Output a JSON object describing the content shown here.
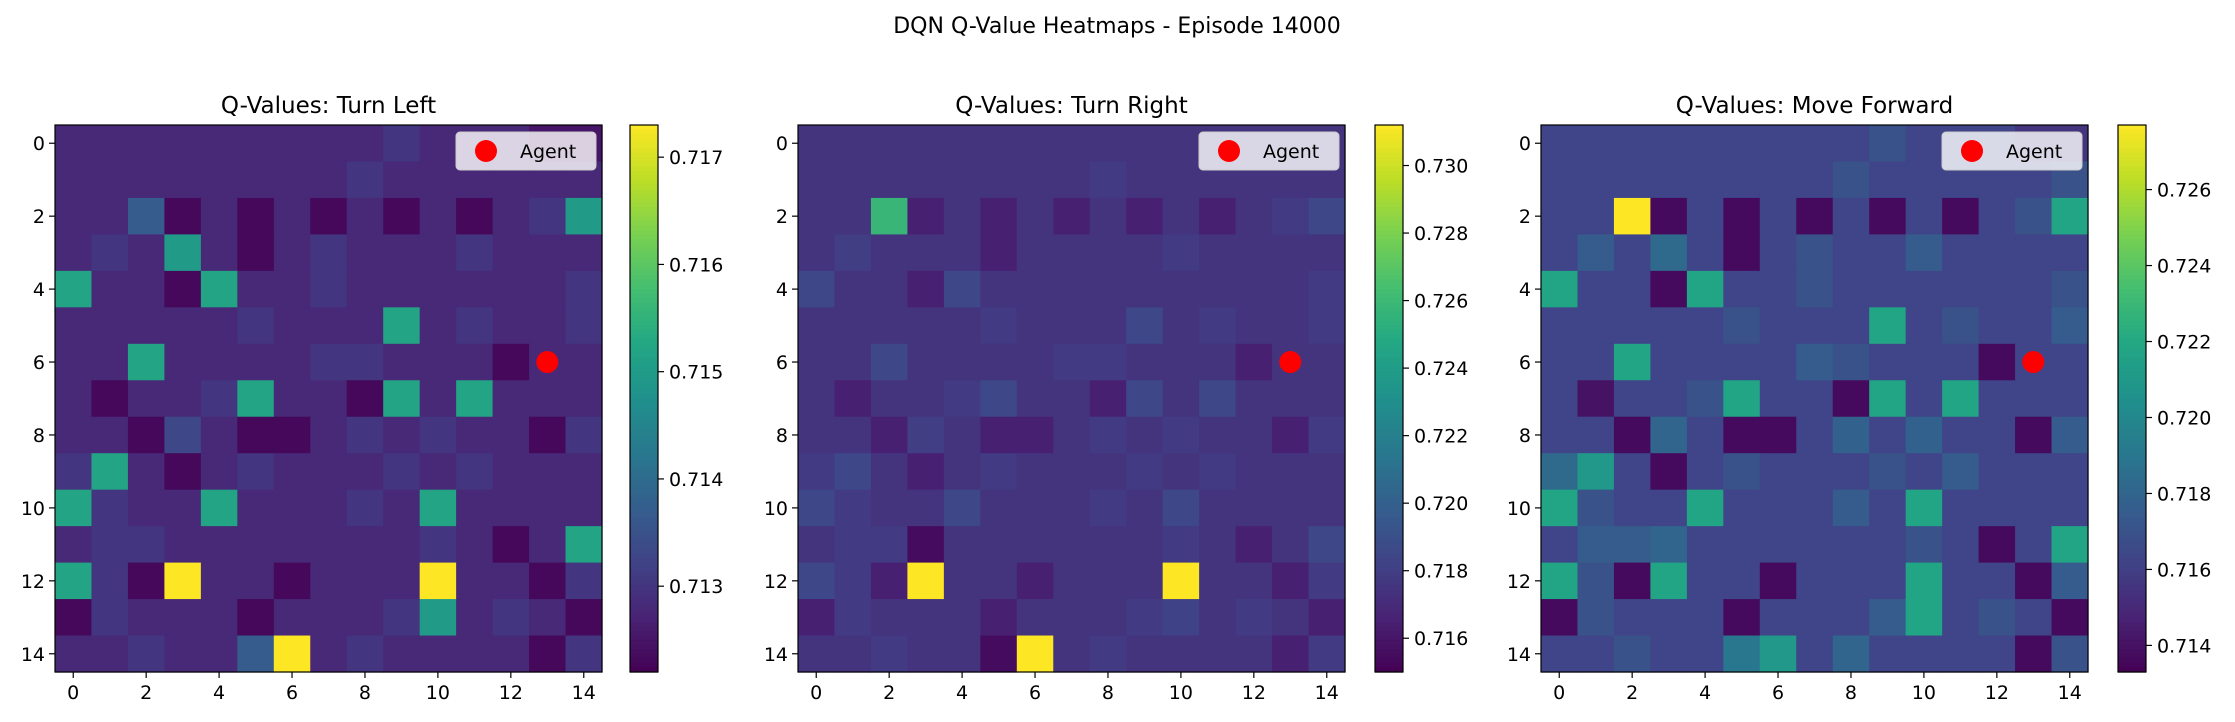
{
  "suptitle": "DQN Q-Value Heatmaps - Episode 14000",
  "chart_data": [
    {
      "type": "heatmap",
      "title": "Q-Values: Turn Left",
      "colormap": "viridis",
      "x_ticks": [
        "0",
        "2",
        "4",
        "6",
        "8",
        "10",
        "12",
        "14"
      ],
      "y_ticks": [
        "0",
        "2",
        "4",
        "6",
        "8",
        "10",
        "12",
        "14"
      ],
      "colorbar_ticks": [
        "0.713",
        "0.714",
        "0.715",
        "0.716",
        "0.717"
      ],
      "vmin": 0.7122,
      "vmax": 0.7173,
      "legend": "Agent",
      "agent": {
        "x": 13,
        "y": 6,
        "color": "#ff0000"
      },
      "values": [
        [
          0.7128,
          0.7128,
          0.7128,
          0.7128,
          0.7128,
          0.7128,
          0.7128,
          0.7128,
          0.7128,
          0.713,
          0.7128,
          0.7128,
          0.7128,
          0.7125,
          0.7125
        ],
        [
          0.7128,
          0.7128,
          0.7128,
          0.7128,
          0.7128,
          0.7128,
          0.7128,
          0.7128,
          0.713,
          0.7128,
          0.7128,
          0.7128,
          0.7128,
          0.7128,
          0.7128
        ],
        [
          0.7128,
          0.7128,
          0.7137,
          0.7123,
          0.7128,
          0.7123,
          0.7128,
          0.7123,
          0.7128,
          0.7123,
          0.7128,
          0.7123,
          0.7128,
          0.713,
          0.715
        ],
        [
          0.7128,
          0.713,
          0.7128,
          0.715,
          0.7128,
          0.7123,
          0.7128,
          0.713,
          0.7128,
          0.7128,
          0.7128,
          0.713,
          0.7128,
          0.7128,
          0.7128
        ],
        [
          0.7152,
          0.7128,
          0.7128,
          0.7123,
          0.7152,
          0.7128,
          0.7128,
          0.713,
          0.7128,
          0.7128,
          0.7128,
          0.7128,
          0.7128,
          0.7128,
          0.713
        ],
        [
          0.7128,
          0.7128,
          0.7128,
          0.7128,
          0.7128,
          0.713,
          0.7128,
          0.7128,
          0.7128,
          0.7152,
          0.7128,
          0.713,
          0.7128,
          0.7128,
          0.713
        ],
        [
          0.7128,
          0.7128,
          0.7152,
          0.7128,
          0.7128,
          0.7128,
          0.7128,
          0.713,
          0.713,
          0.7128,
          0.7128,
          0.7128,
          0.7123,
          0.7128,
          0.7128
        ],
        [
          0.7128,
          0.7123,
          0.7128,
          0.7128,
          0.713,
          0.7152,
          0.7128,
          0.7128,
          0.7123,
          0.7152,
          0.7128,
          0.7152,
          0.7128,
          0.7128,
          0.7128
        ],
        [
          0.7128,
          0.7128,
          0.7123,
          0.7133,
          0.7128,
          0.7123,
          0.7123,
          0.7128,
          0.713,
          0.7128,
          0.713,
          0.7128,
          0.7128,
          0.7123,
          0.713
        ],
        [
          0.713,
          0.7152,
          0.7128,
          0.7123,
          0.7128,
          0.713,
          0.7128,
          0.7128,
          0.7128,
          0.713,
          0.7128,
          0.713,
          0.7128,
          0.7128,
          0.7128
        ],
        [
          0.7152,
          0.713,
          0.7128,
          0.7128,
          0.7152,
          0.7128,
          0.7128,
          0.7128,
          0.713,
          0.7128,
          0.7152,
          0.7128,
          0.7128,
          0.7128,
          0.7128
        ],
        [
          0.7128,
          0.713,
          0.713,
          0.7128,
          0.7128,
          0.7128,
          0.7128,
          0.7128,
          0.7128,
          0.7128,
          0.713,
          0.7128,
          0.7123,
          0.7128,
          0.7152
        ],
        [
          0.7152,
          0.713,
          0.7123,
          0.7173,
          0.7128,
          0.7128,
          0.7123,
          0.7128,
          0.7128,
          0.7128,
          0.7173,
          0.7128,
          0.7128,
          0.7123,
          0.713
        ],
        [
          0.7123,
          0.713,
          0.7128,
          0.7128,
          0.7128,
          0.7123,
          0.7128,
          0.7128,
          0.7128,
          0.713,
          0.715,
          0.7128,
          0.713,
          0.7128,
          0.7123
        ],
        [
          0.7128,
          0.7128,
          0.713,
          0.7128,
          0.7128,
          0.7137,
          0.7173,
          0.7128,
          0.713,
          0.7128,
          0.7128,
          0.7128,
          0.7128,
          0.7123,
          0.713
        ]
      ]
    },
    {
      "type": "heatmap",
      "title": "Q-Values: Turn Right",
      "colormap": "viridis",
      "x_ticks": [
        "0",
        "2",
        "4",
        "6",
        "8",
        "10",
        "12",
        "14"
      ],
      "y_ticks": [
        "0",
        "2",
        "4",
        "6",
        "8",
        "10",
        "12",
        "14"
      ],
      "colorbar_ticks": [
        "0.716",
        "0.718",
        "0.720",
        "0.722",
        "0.724",
        "0.726",
        "0.728",
        "0.730"
      ],
      "vmin": 0.715,
      "vmax": 0.7312,
      "legend": "Agent",
      "agent": {
        "x": 13,
        "y": 6,
        "color": "#ff0000"
      },
      "values": [
        [
          0.7175,
          0.7175,
          0.7175,
          0.7175,
          0.7175,
          0.7175,
          0.7175,
          0.7175,
          0.7175,
          0.7175,
          0.7175,
          0.7175,
          0.7175,
          0.7175,
          0.7175
        ],
        [
          0.7175,
          0.7175,
          0.7175,
          0.7175,
          0.7175,
          0.7175,
          0.7175,
          0.7175,
          0.7178,
          0.7175,
          0.7175,
          0.7175,
          0.7175,
          0.7175,
          0.7175
        ],
        [
          0.7175,
          0.7175,
          0.7258,
          0.7165,
          0.7175,
          0.7165,
          0.7175,
          0.7165,
          0.7175,
          0.7165,
          0.7175,
          0.7165,
          0.7175,
          0.7178,
          0.7185
        ],
        [
          0.7175,
          0.718,
          0.7175,
          0.7175,
          0.7175,
          0.7165,
          0.7175,
          0.7175,
          0.7175,
          0.7175,
          0.7178,
          0.7175,
          0.7175,
          0.7175,
          0.7175
        ],
        [
          0.7185,
          0.7175,
          0.7175,
          0.7165,
          0.7185,
          0.7175,
          0.7175,
          0.7175,
          0.7175,
          0.7175,
          0.7175,
          0.7175,
          0.7175,
          0.7175,
          0.7178
        ],
        [
          0.7175,
          0.7175,
          0.7175,
          0.7175,
          0.7175,
          0.7178,
          0.7175,
          0.7175,
          0.7175,
          0.7185,
          0.7175,
          0.7178,
          0.7175,
          0.7175,
          0.7178
        ],
        [
          0.7175,
          0.7175,
          0.7185,
          0.7175,
          0.7175,
          0.7175,
          0.7175,
          0.7178,
          0.7178,
          0.7175,
          0.7175,
          0.7175,
          0.7165,
          0.7175,
          0.7175
        ],
        [
          0.7175,
          0.7165,
          0.7175,
          0.7175,
          0.7178,
          0.7185,
          0.7175,
          0.7175,
          0.7165,
          0.7185,
          0.7175,
          0.7185,
          0.7175,
          0.7175,
          0.7175
        ],
        [
          0.7175,
          0.7175,
          0.7165,
          0.718,
          0.7175,
          0.7165,
          0.7165,
          0.7175,
          0.7178,
          0.7175,
          0.7178,
          0.7175,
          0.7175,
          0.7165,
          0.7178
        ],
        [
          0.7178,
          0.7185,
          0.7175,
          0.7165,
          0.7175,
          0.7178,
          0.7175,
          0.7175,
          0.7175,
          0.7178,
          0.7175,
          0.7178,
          0.7175,
          0.7175,
          0.7175
        ],
        [
          0.7185,
          0.7178,
          0.7175,
          0.7175,
          0.7185,
          0.7175,
          0.7175,
          0.7175,
          0.7178,
          0.7175,
          0.7185,
          0.7175,
          0.7175,
          0.7175,
          0.7175
        ],
        [
          0.7175,
          0.7178,
          0.7178,
          0.7155,
          0.7175,
          0.7175,
          0.7175,
          0.7175,
          0.7175,
          0.7175,
          0.7178,
          0.7175,
          0.7165,
          0.7175,
          0.7185
        ],
        [
          0.7185,
          0.7178,
          0.7165,
          0.7312,
          0.7175,
          0.7175,
          0.7165,
          0.7175,
          0.7175,
          0.7175,
          0.7312,
          0.7175,
          0.7175,
          0.7165,
          0.7178
        ],
        [
          0.7165,
          0.7178,
          0.7175,
          0.7175,
          0.7175,
          0.7165,
          0.7175,
          0.7175,
          0.7175,
          0.7178,
          0.7182,
          0.7175,
          0.7178,
          0.7175,
          0.7165
        ],
        [
          0.7175,
          0.7175,
          0.7178,
          0.7175,
          0.7175,
          0.7155,
          0.7312,
          0.7175,
          0.7178,
          0.7175,
          0.7175,
          0.7175,
          0.7175,
          0.7165,
          0.7178
        ]
      ]
    },
    {
      "type": "heatmap",
      "title": "Q-Values: Move Forward",
      "colormap": "viridis",
      "x_ticks": [
        "0",
        "2",
        "4",
        "6",
        "8",
        "10",
        "12",
        "14"
      ],
      "y_ticks": [
        "0",
        "2",
        "4",
        "6",
        "8",
        "10",
        "12",
        "14"
      ],
      "colorbar_ticks": [
        "0.714",
        "0.716",
        "0.718",
        "0.720",
        "0.722",
        "0.724",
        "0.726"
      ],
      "vmin": 0.7133,
      "vmax": 0.7277,
      "legend": "Agent",
      "agent": {
        "x": 13,
        "y": 6,
        "color": "#ff0000"
      },
      "values": [
        [
          0.7163,
          0.7163,
          0.7163,
          0.7163,
          0.7163,
          0.7163,
          0.7163,
          0.7163,
          0.7163,
          0.717,
          0.7163,
          0.7163,
          0.7163,
          0.7155,
          0.7155
        ],
        [
          0.7163,
          0.7163,
          0.7163,
          0.7163,
          0.7163,
          0.7163,
          0.7163,
          0.7163,
          0.717,
          0.7163,
          0.7163,
          0.7163,
          0.7163,
          0.7163,
          0.717
        ],
        [
          0.7163,
          0.7163,
          0.7277,
          0.7137,
          0.7163,
          0.7137,
          0.7163,
          0.7137,
          0.7163,
          0.7137,
          0.7163,
          0.7137,
          0.7163,
          0.717,
          0.7218
        ],
        [
          0.7163,
          0.7175,
          0.7163,
          0.7183,
          0.7163,
          0.7137,
          0.7163,
          0.717,
          0.7163,
          0.7163,
          0.7175,
          0.7163,
          0.7163,
          0.7163,
          0.7163
        ],
        [
          0.7218,
          0.7163,
          0.7163,
          0.7137,
          0.7218,
          0.7163,
          0.7163,
          0.717,
          0.7163,
          0.7163,
          0.7163,
          0.7163,
          0.7163,
          0.7163,
          0.717
        ],
        [
          0.7163,
          0.7163,
          0.7163,
          0.7163,
          0.7163,
          0.717,
          0.7163,
          0.7163,
          0.7163,
          0.7218,
          0.7163,
          0.717,
          0.7163,
          0.7163,
          0.7175
        ],
        [
          0.7163,
          0.7163,
          0.7218,
          0.7163,
          0.7163,
          0.7163,
          0.7163,
          0.7175,
          0.717,
          0.7163,
          0.7163,
          0.7163,
          0.7137,
          0.7163,
          0.7163
        ],
        [
          0.7163,
          0.714,
          0.7163,
          0.7163,
          0.717,
          0.7218,
          0.7163,
          0.7163,
          0.7137,
          0.7218,
          0.7163,
          0.7218,
          0.7163,
          0.7163,
          0.7163
        ],
        [
          0.7163,
          0.7163,
          0.7137,
          0.718,
          0.7163,
          0.7137,
          0.7137,
          0.7163,
          0.7178,
          0.7163,
          0.7178,
          0.7163,
          0.7163,
          0.7137,
          0.7175
        ],
        [
          0.7183,
          0.721,
          0.7163,
          0.7137,
          0.7163,
          0.717,
          0.7163,
          0.7163,
          0.7163,
          0.717,
          0.7163,
          0.7175,
          0.7163,
          0.7163,
          0.7163
        ],
        [
          0.7218,
          0.717,
          0.7163,
          0.7163,
          0.7218,
          0.7163,
          0.7163,
          0.7163,
          0.7175,
          0.7163,
          0.7218,
          0.7163,
          0.7163,
          0.7163,
          0.7163
        ],
        [
          0.7163,
          0.7175,
          0.7175,
          0.718,
          0.7163,
          0.7163,
          0.7163,
          0.7163,
          0.7163,
          0.7163,
          0.717,
          0.7163,
          0.7137,
          0.7163,
          0.7218
        ],
        [
          0.7218,
          0.717,
          0.7137,
          0.7218,
          0.7163,
          0.7163,
          0.7137,
          0.7163,
          0.7163,
          0.7163,
          0.7218,
          0.7163,
          0.7163,
          0.7137,
          0.7175
        ],
        [
          0.7137,
          0.717,
          0.7163,
          0.7163,
          0.7163,
          0.7137,
          0.7163,
          0.7163,
          0.7163,
          0.7175,
          0.7218,
          0.7163,
          0.717,
          0.7163,
          0.7137
        ],
        [
          0.7163,
          0.7163,
          0.717,
          0.7163,
          0.7163,
          0.719,
          0.721,
          0.7163,
          0.718,
          0.7163,
          0.7163,
          0.7163,
          0.7163,
          0.7137,
          0.717
        ]
      ]
    }
  ]
}
